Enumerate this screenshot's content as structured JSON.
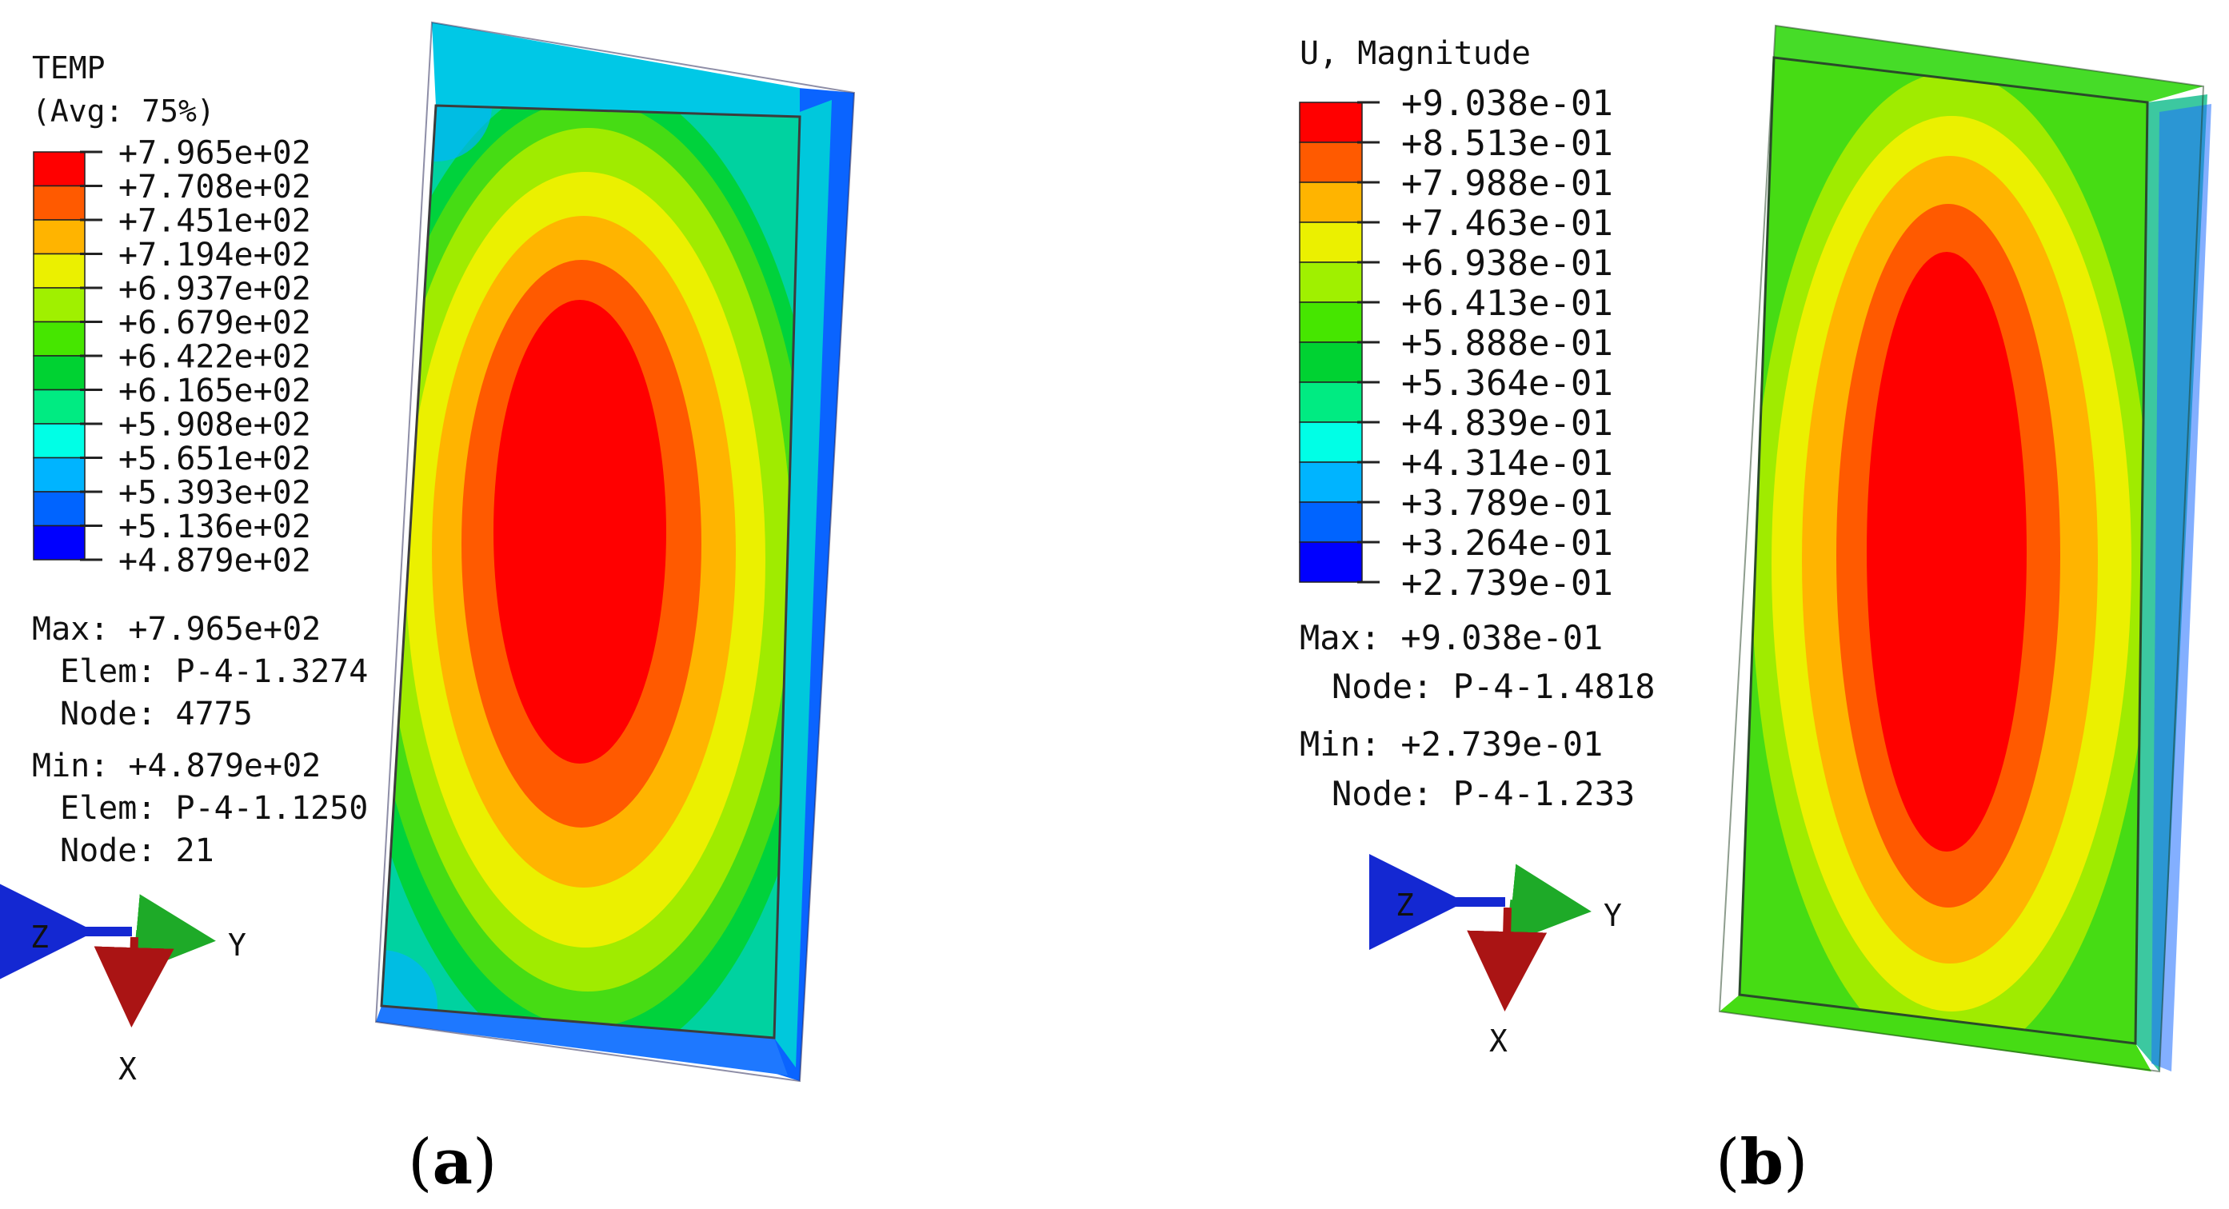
{
  "panels": [
    {
      "id": "a",
      "caption_open": "(",
      "caption_letter": "a",
      "caption_close": ")",
      "legend": {
        "title_line1": "TEMP",
        "title_line2": "(Avg: 75%)",
        "values": [
          "+7.965e+02",
          "+7.708e+02",
          "+7.451e+02",
          "+7.194e+02",
          "+6.937e+02",
          "+6.679e+02",
          "+6.422e+02",
          "+6.165e+02",
          "+5.908e+02",
          "+5.651e+02",
          "+5.393e+02",
          "+5.136e+02",
          "+4.879e+02"
        ],
        "colors": [
          "#ff0000",
          "#ff5a00",
          "#ffb400",
          "#ebf000",
          "#a0f000",
          "#46e600",
          "#00d232",
          "#00eb82",
          "#00ffe6",
          "#00b4ff",
          "#0064ff",
          "#0000ff"
        ]
      },
      "stats": {
        "max_line": "Max: +7.965e+02",
        "max_elem": "Elem: P-4-1.3274",
        "max_node": "Node: 4775",
        "min_line": "Min: +4.879e+02",
        "min_elem": "Elem: P-4-1.1250",
        "min_node": "Node: 21"
      },
      "triad": {
        "z": "Z",
        "y": "Y",
        "x": "X"
      }
    },
    {
      "id": "b",
      "caption_open": "(",
      "caption_letter": "b",
      "caption_close": ")",
      "legend": {
        "title_line1": "U, Magnitude",
        "values": [
          "+9.038e-01",
          "+8.513e-01",
          "+7.988e-01",
          "+7.463e-01",
          "+6.938e-01",
          "+6.413e-01",
          "+5.888e-01",
          "+5.364e-01",
          "+4.839e-01",
          "+4.314e-01",
          "+3.789e-01",
          "+3.264e-01",
          "+2.739e-01"
        ],
        "colors": [
          "#ff0000",
          "#ff5a00",
          "#ffb400",
          "#ebf000",
          "#a0f000",
          "#46e600",
          "#00d232",
          "#00eb82",
          "#00ffe6",
          "#00b4ff",
          "#0064ff",
          "#0000ff"
        ]
      },
      "stats": {
        "max_line": "Max: +9.038e-01",
        "max_node": "Node: P-4-1.4818",
        "min_line": "Min: +2.739e-01",
        "min_node": "Node: P-4-1.233"
      },
      "triad": {
        "z": "Z",
        "y": "Y",
        "x": "X"
      }
    }
  ]
}
